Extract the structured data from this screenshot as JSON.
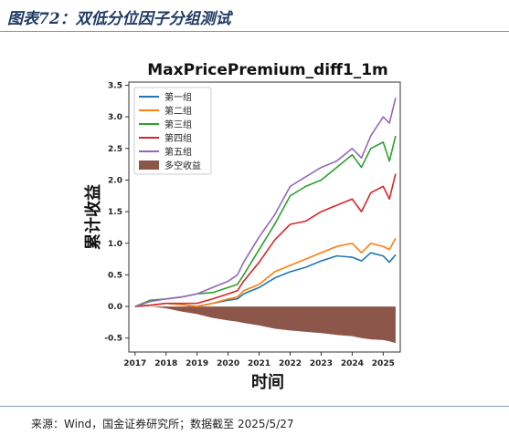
{
  "header": {
    "title": "图表72：双低分位因子分组测试"
  },
  "footer": {
    "source": "来源：Wind，国金证券研究所；数据截至 2025/5/27"
  },
  "chart_data": {
    "type": "line",
    "title": "MaxPricePremium_diff1_1m",
    "xlabel": "时间",
    "ylabel": "累计收益",
    "xlim": [
      2016.8,
      2025.55
    ],
    "ylim": [
      -0.72,
      3.55
    ],
    "x_ticks": [
      "2017",
      "2018",
      "2019",
      "2020",
      "2021",
      "2022",
      "2023",
      "2024",
      "2025"
    ],
    "y_ticks": [
      "3.5",
      "3.0",
      "2.5",
      "2.0",
      "1.5",
      "1.0",
      "0.5",
      "0.0",
      "-0.5"
    ],
    "y_tick_values": [
      3.5,
      3.0,
      2.5,
      2.0,
      1.5,
      1.0,
      0.5,
      0.0,
      -0.5
    ],
    "legend_position": "top-left",
    "x": [
      2017.0,
      2017.5,
      2018.0,
      2018.5,
      2019.0,
      2019.5,
      2020.0,
      2020.3,
      2020.5,
      2021.0,
      2021.5,
      2022.0,
      2022.5,
      2023.0,
      2023.5,
      2024.0,
      2024.3,
      2024.6,
      2025.0,
      2025.2,
      2025.4
    ],
    "series": [
      {
        "name": "第一组",
        "color": "#1f77b4",
        "values": [
          0.0,
          0.02,
          0.05,
          0.03,
          0.0,
          0.05,
          0.1,
          0.12,
          0.2,
          0.3,
          0.45,
          0.55,
          0.62,
          0.72,
          0.8,
          0.78,
          0.72,
          0.85,
          0.8,
          0.7,
          0.82
        ]
      },
      {
        "name": "第二组",
        "color": "#ff7f0e",
        "values": [
          0.0,
          0.02,
          0.05,
          0.03,
          0.0,
          0.05,
          0.12,
          0.15,
          0.25,
          0.35,
          0.55,
          0.65,
          0.75,
          0.85,
          0.95,
          1.0,
          0.85,
          1.0,
          0.95,
          0.9,
          1.08
        ]
      },
      {
        "name": "第三组",
        "color": "#2ca02c",
        "values": [
          0.0,
          0.1,
          0.12,
          0.15,
          0.2,
          0.22,
          0.3,
          0.35,
          0.5,
          0.9,
          1.3,
          1.75,
          1.9,
          2.0,
          2.2,
          2.4,
          2.2,
          2.5,
          2.6,
          2.3,
          2.7
        ]
      },
      {
        "name": "第四组",
        "color": "#d62728",
        "values": [
          0.0,
          0.02,
          0.05,
          0.05,
          0.05,
          0.12,
          0.2,
          0.25,
          0.4,
          0.7,
          1.05,
          1.3,
          1.35,
          1.5,
          1.6,
          1.7,
          1.5,
          1.8,
          1.9,
          1.7,
          2.1
        ]
      },
      {
        "name": "第五组",
        "color": "#9467bd",
        "values": [
          0.0,
          0.08,
          0.12,
          0.15,
          0.2,
          0.3,
          0.4,
          0.5,
          0.7,
          1.1,
          1.45,
          1.9,
          2.05,
          2.2,
          2.3,
          2.5,
          2.35,
          2.7,
          3.0,
          2.9,
          3.3
        ]
      }
    ],
    "area_series": {
      "name": "多空收益",
      "color": "#8c564b",
      "values": [
        0.0,
        0.0,
        -0.03,
        -0.08,
        -0.12,
        -0.18,
        -0.22,
        -0.24,
        -0.26,
        -0.3,
        -0.35,
        -0.38,
        -0.4,
        -0.42,
        -0.45,
        -0.47,
        -0.5,
        -0.52,
        -0.53,
        -0.55,
        -0.58
      ]
    }
  }
}
